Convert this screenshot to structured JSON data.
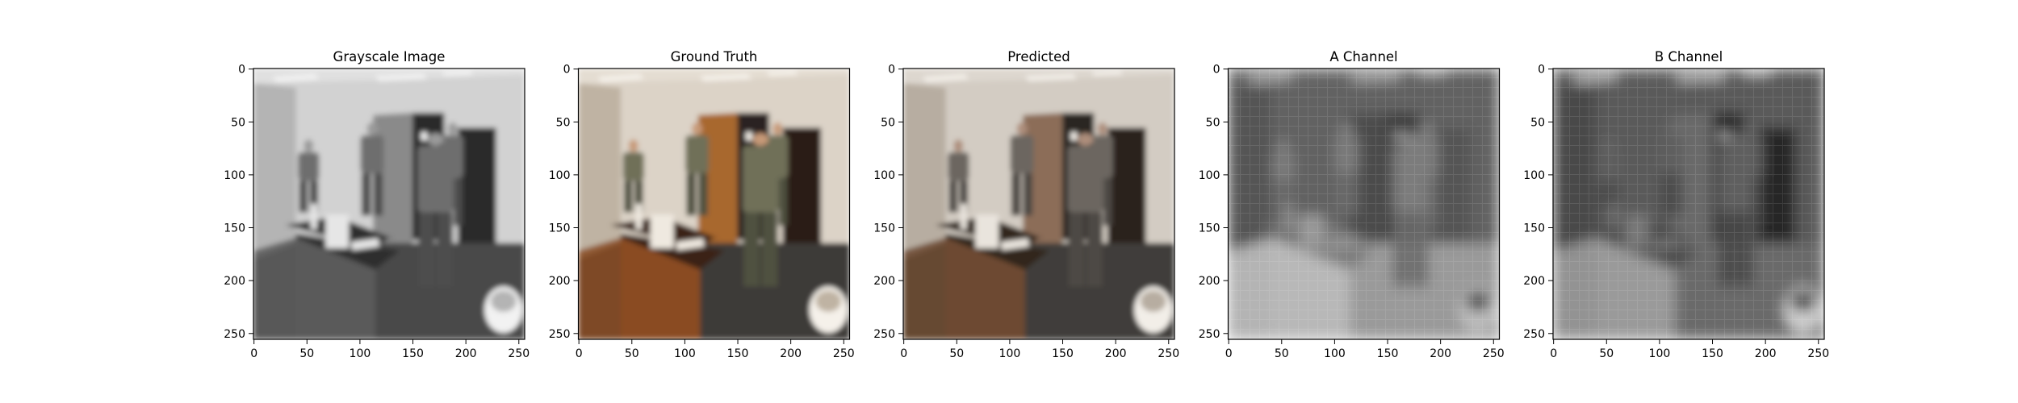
{
  "figure": {
    "panels": [
      {
        "title": "Grayscale Image",
        "mode": "gray"
      },
      {
        "title": "Ground Truth",
        "mode": "color"
      },
      {
        "title": "Predicted",
        "mode": "pred"
      },
      {
        "title": "A Channel",
        "mode": "achan"
      },
      {
        "title": "B Channel",
        "mode": "bchan"
      }
    ]
  },
  "chart_data": {
    "type": "image_grid",
    "image_size": [
      256,
      256
    ],
    "x_ticks": [
      0,
      50,
      100,
      150,
      200,
      250
    ],
    "y_ticks": [
      0,
      50,
      100,
      150,
      200,
      250
    ],
    "xlim": [
      0,
      256
    ],
    "ylim": [
      256,
      0
    ],
    "grid": false,
    "panel_titles": [
      "Grayscale Image",
      "Ground Truth",
      "Predicted",
      "A Channel",
      "B Channel"
    ]
  }
}
